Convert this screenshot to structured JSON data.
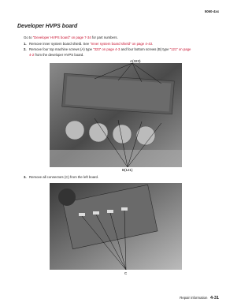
{
  "header": {
    "code": "5060-4xx"
  },
  "title": "Developer HVPS board",
  "intro": [
    {
      "text": "Go to ",
      "link": false
    },
    {
      "text": "“Developer HVPS board” on page 7-34",
      "link": true
    },
    {
      "text": " for part numbers.",
      "link": false
    }
  ],
  "steps": [
    {
      "number": "1.",
      "parts": [
        {
          "text": "Remove inner system board shield. See ",
          "link": false
        },
        {
          "text": "“Inner system board shield” on page 4-43",
          "link": true
        },
        {
          "text": ".",
          "link": false
        }
      ]
    },
    {
      "number": "2.",
      "parts": [
        {
          "text": "Remove four top machine screws (A) type ",
          "link": false
        },
        {
          "text": "“323” on page 4-3",
          "link": true
        },
        {
          "text": " and four bottom screws (B) type ",
          "link": false
        },
        {
          "text": "“121” on page 4-2",
          "link": true
        },
        {
          "text": " from the developer HVPS board.",
          "link": false
        }
      ]
    },
    {
      "number": "3.",
      "parts": [
        {
          "text": "Remove all connectors (C) from the left board.",
          "link": false
        }
      ]
    }
  ],
  "figures": [
    {
      "labels": [
        "A(323)",
        "B(121)"
      ]
    },
    {
      "labels": [
        "C"
      ]
    }
  ],
  "footer": {
    "section": "Repair information",
    "page": "4-31"
  }
}
